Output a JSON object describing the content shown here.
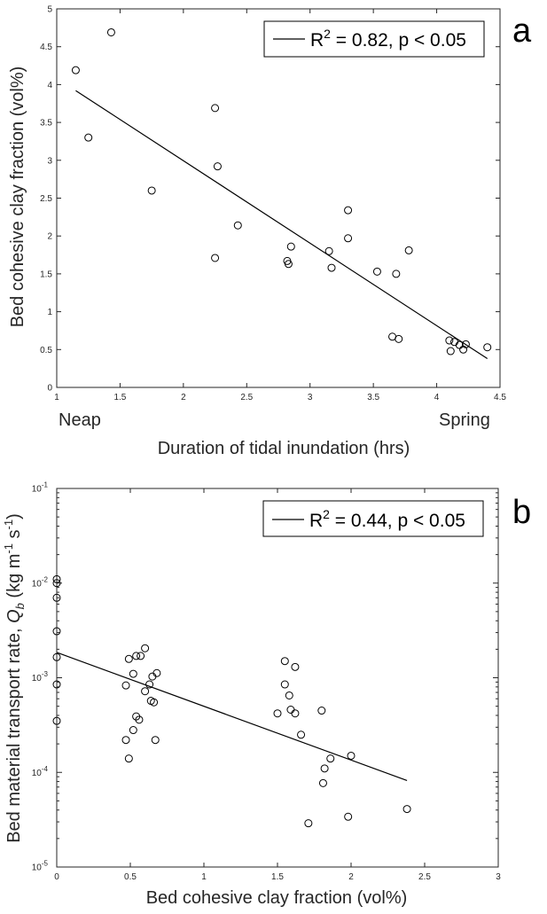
{
  "chart_data": [
    {
      "type": "scatter",
      "panel_label": "a",
      "xlabel": "Duration of tidal inundation (hrs)",
      "ylabel": "Bed cohesive clay fraction (vol%)",
      "xlim": [
        1,
        4.5
      ],
      "ylim": [
        0,
        5
      ],
      "x_ticks": [
        "1",
        "1.5",
        "2",
        "2.5",
        "3",
        "3.5",
        "4",
        "4.5"
      ],
      "y_ticks": [
        "0",
        "0.5",
        "1",
        "1.5",
        "2",
        "2.5",
        "3",
        "3.5",
        "4",
        "4.5",
        "5"
      ],
      "x_extra_labels": {
        "left": "Neap",
        "right": "Spring"
      },
      "legend": {
        "prefix": "R",
        "sup": "2",
        "suffix": " = 0.82, p < 0.05",
        "position": "top-right"
      },
      "fit_line": {
        "x": [
          1.15,
          4.4
        ],
        "y": [
          3.92,
          0.38
        ]
      },
      "points": [
        {
          "x": 1.15,
          "y": 4.19
        },
        {
          "x": 1.43,
          "y": 4.69
        },
        {
          "x": 1.25,
          "y": 3.3
        },
        {
          "x": 1.75,
          "y": 2.6
        },
        {
          "x": 2.25,
          "y": 3.69
        },
        {
          "x": 2.27,
          "y": 2.92
        },
        {
          "x": 2.25,
          "y": 1.71
        },
        {
          "x": 2.43,
          "y": 2.14
        },
        {
          "x": 2.82,
          "y": 1.67
        },
        {
          "x": 2.83,
          "y": 1.63
        },
        {
          "x": 2.85,
          "y": 1.86
        },
        {
          "x": 3.15,
          "y": 1.8
        },
        {
          "x": 3.17,
          "y": 1.58
        },
        {
          "x": 3.3,
          "y": 2.34
        },
        {
          "x": 3.3,
          "y": 1.97
        },
        {
          "x": 3.53,
          "y": 1.53
        },
        {
          "x": 3.68,
          "y": 1.5
        },
        {
          "x": 3.78,
          "y": 1.81
        },
        {
          "x": 3.65,
          "y": 0.67
        },
        {
          "x": 3.7,
          "y": 0.64
        },
        {
          "x": 4.1,
          "y": 0.62
        },
        {
          "x": 4.14,
          "y": 0.6
        },
        {
          "x": 4.11,
          "y": 0.48
        },
        {
          "x": 4.18,
          "y": 0.56
        },
        {
          "x": 4.21,
          "y": 0.5
        },
        {
          "x": 4.23,
          "y": 0.57
        },
        {
          "x": 4.4,
          "y": 0.53
        }
      ]
    },
    {
      "type": "scatter",
      "panel_label": "b",
      "xlabel": "Bed cohesive clay fraction (vol%)",
      "ylabel_parts": {
        "main": "Bed material transport rate, ",
        "q": "Q",
        "q_sub": "b",
        "unit_open": " (kg m",
        "sup1": "-1",
        "unit_mid": " s",
        "sup2": "-1",
        "unit_close": ")"
      },
      "xlim": [
        0,
        3
      ],
      "ylim": [
        1e-05,
        0.1
      ],
      "y_scale": "log",
      "x_ticks": [
        "0",
        "0.5",
        "1",
        "1.5",
        "2",
        "2.5",
        "3"
      ],
      "y_ticks": [
        {
          "base": "10",
          "exp": "-1"
        },
        {
          "base": "10",
          "exp": "-2"
        },
        {
          "base": "10",
          "exp": "-3"
        },
        {
          "base": "10",
          "exp": "-4"
        },
        {
          "base": "10",
          "exp": "-5"
        }
      ],
      "legend": {
        "prefix": "R",
        "sup": "2",
        "suffix": " = 0.44, p < 0.05",
        "position": "top-right"
      },
      "fit_line": {
        "x": [
          0.0,
          2.38
        ],
        "y": [
          0.00185,
          8.2e-05
        ]
      },
      "points": [
        {
          "x": 0.0,
          "y": 0.011
        },
        {
          "x": 0.0,
          "y": 0.01
        },
        {
          "x": 0.0,
          "y": 0.007
        },
        {
          "x": 0.0,
          "y": 0.0031
        },
        {
          "x": 0.0,
          "y": 0.00165
        },
        {
          "x": 0.0,
          "y": 0.00085
        },
        {
          "x": 0.0,
          "y": 0.00035
        },
        {
          "x": 0.47,
          "y": 0.00083
        },
        {
          "x": 0.49,
          "y": 0.00158
        },
        {
          "x": 0.52,
          "y": 0.0011
        },
        {
          "x": 0.54,
          "y": 0.0017
        },
        {
          "x": 0.57,
          "y": 0.0017
        },
        {
          "x": 0.6,
          "y": 0.00205
        },
        {
          "x": 0.6,
          "y": 0.00072
        },
        {
          "x": 0.63,
          "y": 0.00085
        },
        {
          "x": 0.64,
          "y": 0.00057
        },
        {
          "x": 0.65,
          "y": 0.00103
        },
        {
          "x": 0.66,
          "y": 0.00055
        },
        {
          "x": 0.68,
          "y": 0.00112
        },
        {
          "x": 0.54,
          "y": 0.00039
        },
        {
          "x": 0.56,
          "y": 0.00036
        },
        {
          "x": 0.52,
          "y": 0.00028
        },
        {
          "x": 0.47,
          "y": 0.00022
        },
        {
          "x": 0.67,
          "y": 0.00022
        },
        {
          "x": 0.49,
          "y": 0.00014
        },
        {
          "x": 1.55,
          "y": 0.0015
        },
        {
          "x": 1.62,
          "y": 0.0013
        },
        {
          "x": 1.55,
          "y": 0.00085
        },
        {
          "x": 1.58,
          "y": 0.00065
        },
        {
          "x": 1.59,
          "y": 0.00046
        },
        {
          "x": 1.62,
          "y": 0.00042
        },
        {
          "x": 1.5,
          "y": 0.00042
        },
        {
          "x": 1.8,
          "y": 0.00045
        },
        {
          "x": 1.66,
          "y": 0.00025
        },
        {
          "x": 1.86,
          "y": 0.00014
        },
        {
          "x": 1.82,
          "y": 0.00011
        },
        {
          "x": 2.0,
          "y": 0.00015
        },
        {
          "x": 1.81,
          "y": 7.7e-05
        },
        {
          "x": 1.98,
          "y": 3.4e-05
        },
        {
          "x": 2.38,
          "y": 4.1e-05
        },
        {
          "x": 1.71,
          "y": 2.9e-05
        }
      ]
    }
  ]
}
